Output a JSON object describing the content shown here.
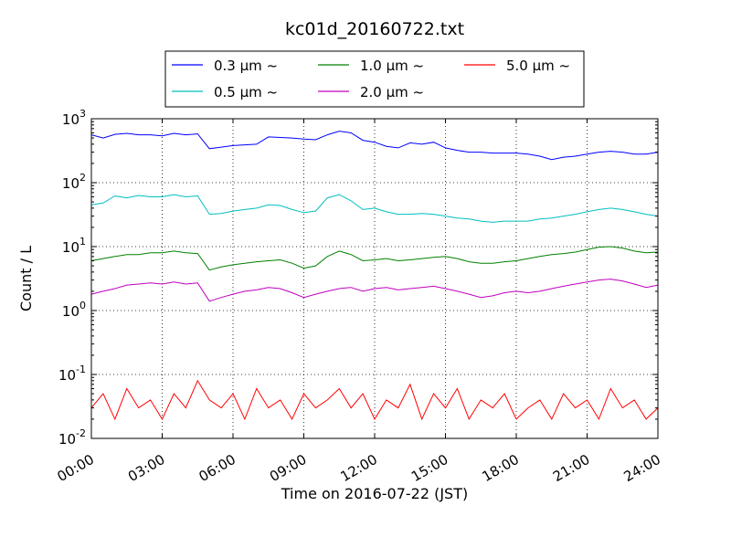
{
  "chart_data": {
    "type": "line",
    "title": "kc01d_20160722.txt",
    "xlabel": "Time on 2016-07-22 (JST)",
    "ylabel": "Count / L",
    "yscale": "log",
    "xlim": [
      "2016-07-22 00:00",
      "2016-07-23 00:00"
    ],
    "ylim": [
      0.01,
      1000
    ],
    "grid": true,
    "legend_position": "top-center",
    "x_ticks": [
      "00:00",
      "03:00",
      "06:00",
      "09:00",
      "12:00",
      "15:00",
      "18:00",
      "21:00",
      "24:00"
    ],
    "y_ticks": [
      {
        "base": "10",
        "exp": "-2"
      },
      {
        "base": "10",
        "exp": "-1"
      },
      {
        "base": "10",
        "exp": "0"
      },
      {
        "base": "10",
        "exp": "1"
      },
      {
        "base": "10",
        "exp": "2"
      },
      {
        "base": "10",
        "exp": "3"
      }
    ],
    "x": [
      "00:00",
      "00:30",
      "01:00",
      "01:30",
      "02:00",
      "02:30",
      "03:00",
      "03:30",
      "04:00",
      "04:30",
      "05:00",
      "05:30",
      "06:00",
      "06:30",
      "07:00",
      "07:30",
      "08:00",
      "08:30",
      "09:00",
      "09:30",
      "10:00",
      "10:30",
      "11:00",
      "11:30",
      "12:00",
      "12:30",
      "13:00",
      "13:30",
      "14:00",
      "14:30",
      "15:00",
      "15:30",
      "16:00",
      "16:30",
      "17:00",
      "17:30",
      "18:00",
      "18:30",
      "19:00",
      "19:30",
      "20:00",
      "20:30",
      "21:00",
      "21:30",
      "22:00",
      "22:30",
      "23:00",
      "23:30",
      "24:00"
    ],
    "series": [
      {
        "name": "0.3 μm ~",
        "color": "#0000ff",
        "values": [
          560,
          500,
          570,
          590,
          560,
          560,
          540,
          590,
          560,
          580,
          340,
          360,
          380,
          390,
          400,
          520,
          510,
          500,
          480,
          470,
          560,
          640,
          600,
          460,
          430,
          370,
          350,
          420,
          400,
          430,
          350,
          320,
          300,
          300,
          290,
          290,
          290,
          280,
          260,
          230,
          250,
          260,
          280,
          300,
          310,
          300,
          280,
          280,
          300
        ]
      },
      {
        "name": "0.5 μm ~",
        "color": "#00bfbf",
        "values": [
          45,
          48,
          62,
          58,
          63,
          60,
          60,
          65,
          60,
          62,
          32,
          33,
          36,
          38,
          40,
          45,
          44,
          38,
          34,
          36,
          58,
          65,
          52,
          38,
          40,
          35,
          32,
          32,
          33,
          32,
          30,
          28,
          27,
          25,
          24,
          25,
          25,
          25,
          27,
          28,
          30,
          32,
          35,
          38,
          40,
          38,
          35,
          32,
          30
        ]
      },
      {
        "name": "1.0 μm ~",
        "color": "#008000",
        "values": [
          6,
          6.5,
          7,
          7.5,
          7.5,
          8,
          8,
          8.5,
          8,
          7.8,
          4.3,
          4.8,
          5.2,
          5.5,
          5.8,
          6,
          6.2,
          5.5,
          4.6,
          5,
          7,
          8.5,
          7.5,
          6,
          6.2,
          6.5,
          6,
          6.2,
          6.5,
          6.8,
          7,
          6.5,
          5.8,
          5.5,
          5.5,
          5.8,
          6,
          6.5,
          7,
          7.5,
          7.8,
          8.2,
          9,
          9.8,
          10,
          9.5,
          8.5,
          8,
          8.2
        ]
      },
      {
        "name": "2.0 μm ~",
        "color": "#bf00bf",
        "values": [
          1.8,
          2,
          2.2,
          2.5,
          2.6,
          2.7,
          2.6,
          2.8,
          2.6,
          2.7,
          1.4,
          1.6,
          1.8,
          2,
          2.1,
          2.3,
          2.2,
          1.9,
          1.6,
          1.8,
          2,
          2.2,
          2.3,
          2,
          2.2,
          2.3,
          2.1,
          2.2,
          2.3,
          2.4,
          2.2,
          2,
          1.8,
          1.6,
          1.7,
          1.9,
          2,
          1.9,
          2,
          2.2,
          2.4,
          2.6,
          2.8,
          3,
          3.1,
          2.9,
          2.6,
          2.3,
          2.5
        ]
      },
      {
        "name": "5.0 μm ~",
        "color": "#ff0000",
        "values": [
          0.03,
          0.05,
          0.02,
          0.06,
          0.03,
          0.04,
          0.02,
          0.05,
          0.03,
          0.08,
          0.04,
          0.03,
          0.05,
          0.02,
          0.06,
          0.03,
          0.04,
          0.02,
          0.05,
          0.03,
          0.04,
          0.06,
          0.03,
          0.05,
          0.02,
          0.04,
          0.03,
          0.07,
          0.02,
          0.05,
          0.03,
          0.06,
          0.02,
          0.04,
          0.03,
          0.05,
          0.02,
          0.03,
          0.04,
          0.02,
          0.05,
          0.03,
          0.04,
          0.02,
          0.06,
          0.03,
          0.04,
          0.02,
          0.03
        ]
      }
    ]
  }
}
